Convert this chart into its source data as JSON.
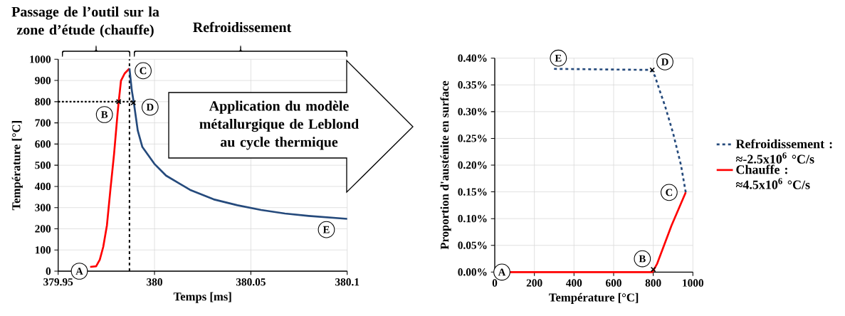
{
  "chart_data": [
    {
      "type": "line",
      "xlabel": "Temps [ms]",
      "ylabel": "Température [°C]",
      "xlim": [
        379.95,
        380.1
      ],
      "xticks": [
        379.95,
        380,
        380.05,
        380.1
      ],
      "ylim": [
        0,
        1000
      ],
      "yticks": [
        0,
        100,
        200,
        300,
        400,
        500,
        600,
        700,
        800,
        900,
        1000
      ],
      "grid": true,
      "series": [
        {
          "color": "#ff0000",
          "x": [
            379.9666,
            379.9697,
            379.9716,
            379.9734,
            379.9753,
            379.9771,
            379.979,
            379.9808,
            379.9814,
            379.9826,
            379.9845,
            379.987
          ],
          "values": [
            20,
            23,
            54,
            115,
            216,
            384,
            552,
            742,
            798,
            899,
            933,
            957
          ]
        },
        {
          "color": "#254a7c",
          "x": [
            379.987,
            379.9882,
            379.9894,
            379.9913,
            379.9937,
            379.9999,
            380.006,
            380.0184,
            380.0307,
            380.043,
            380.0553,
            380.0677,
            380.08,
            380.1
          ],
          "values": [
            957,
            854,
            787,
            664,
            586,
            507,
            451,
            384,
            339,
            311,
            289,
            272,
            261,
            247
          ]
        },
        {
          "type": "line",
          "line_style": "dotted",
          "color": "#000000",
          "x": [
            379.95,
            379.99
          ],
          "values": [
            800,
            800
          ]
        },
        {
          "type": "scatter",
          "marker": "cross",
          "color": "#000000",
          "x": [
            379.9814,
            379.989
          ],
          "values": [
            800,
            795
          ]
        }
      ],
      "ref_lines": [
        {
          "axis": "x",
          "value": 379.987,
          "line_style": "dashed",
          "color": "#000000"
        }
      ],
      "annotations": [
        "Passage de l’outil sur la zone d’étude (chauffe)",
        "Refroidissement",
        "Application du modèle métallurgique de Leblond au cycle thermique",
        {
          "text": "A",
          "x": 379.961,
          "y": 0
        },
        {
          "text": "B",
          "x": 379.974,
          "y": 739
        },
        {
          "text": "C",
          "x": 379.9941,
          "y": 946
        },
        {
          "text": "D",
          "x": 379.9977,
          "y": 774
        },
        {
          "text": "E",
          "x": 380.0892,
          "y": 196
        }
      ]
    },
    {
      "type": "line",
      "xlabel": "Température [°C]",
      "ylabel": "Proportion d'austénite en surface",
      "xlim": [
        0,
        1000
      ],
      "xticks": [
        0,
        200,
        400,
        600,
        800,
        1000
      ],
      "ylim": [
        0,
        0.4
      ],
      "yticks": [
        {
          "value": 0,
          "label": "0.00%"
        },
        {
          "value": 0.05,
          "label": "0.05%"
        },
        {
          "value": 0.1,
          "label": "0.10%"
        },
        {
          "value": 0.15,
          "label": "0.15%"
        },
        {
          "value": 0.2,
          "label": "0.20%"
        },
        {
          "value": 0.25,
          "label": "0.25%"
        },
        {
          "value": 0.3,
          "label": "0.30%"
        },
        {
          "value": 0.35,
          "label": "0.35%"
        },
        {
          "value": 0.4,
          "label": "0.40%"
        }
      ],
      "grid": true,
      "legend": "right",
      "series": [
        {
          "name": "Refroidissement : ≈-2.5x10$^{6}$ °C/s",
          "color": "#254a7c",
          "line_style": "dashed",
          "x": [
            964,
            940,
            900,
            860,
            832,
            808,
            790,
            291
          ],
          "values": [
            0.149,
            0.2,
            0.26,
            0.31,
            0.34,
            0.367,
            0.378,
            0.38
          ]
        },
        {
          "name": "Chauffe : ≈4.5x10$^{6}$ °C/s",
          "color": "#ff0000",
          "line_style": "solid",
          "x": [
            78,
            796,
            820,
            892,
            964
          ],
          "values": [
            0,
            0,
            0.016,
            0.087,
            0.149
          ]
        },
        {
          "type": "scatter",
          "marker": "cross",
          "color": "#000000",
          "x": [
            800,
            795
          ],
          "values": [
            0.005,
            0.378
          ]
        }
      ],
      "annotations": [
        {
          "text": "A",
          "x": 36,
          "y": 0
        },
        {
          "text": "B",
          "x": 745,
          "y": 0.025
        },
        {
          "text": "C",
          "x": 880,
          "y": 0.149
        },
        {
          "text": "D",
          "x": 859,
          "y": 0.393
        },
        {
          "text": "E",
          "x": 321,
          "y": 0.4
        }
      ]
    }
  ]
}
